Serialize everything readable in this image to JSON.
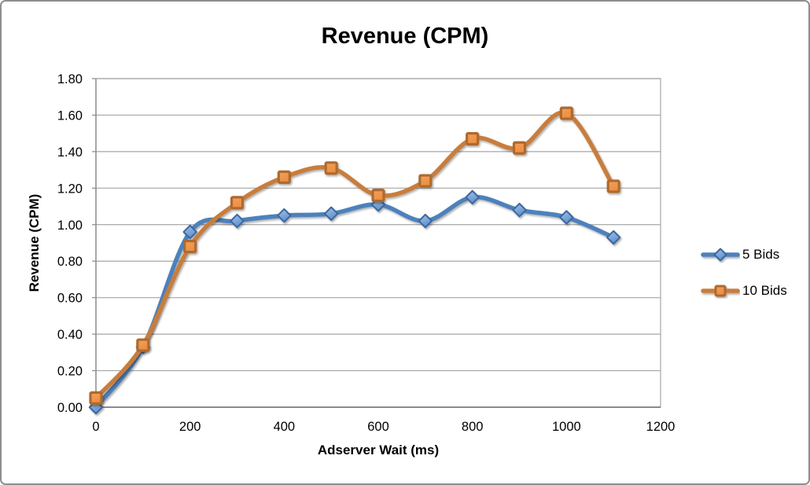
{
  "window": {
    "background": "#ffffff",
    "border_color": "#8e8e8e"
  },
  "chart_data": {
    "type": "line",
    "title": "Revenue (CPM)",
    "xlabel": "Adserver Wait (ms)",
    "ylabel": "Revenue (CPM)",
    "xlim": [
      0,
      1200
    ],
    "ylim": [
      0,
      1.8
    ],
    "grid": true,
    "legend_position": "right",
    "x_ticks": [
      0,
      200,
      400,
      600,
      800,
      1000,
      1200
    ],
    "x_tick_labels": [
      "0",
      "200",
      "400",
      "600",
      "800",
      "1000",
      "1200"
    ],
    "y_ticks": [
      0,
      0.2,
      0.4,
      0.6,
      0.8,
      1.0,
      1.2,
      1.4,
      1.6,
      1.8
    ],
    "y_tick_labels": [
      "0.00",
      "0.20",
      "0.40",
      "0.60",
      "0.80",
      "1.00",
      "1.20",
      "1.40",
      "1.60",
      "1.80"
    ],
    "x": [
      0,
      100,
      200,
      300,
      400,
      500,
      600,
      700,
      800,
      900,
      1000,
      1100
    ],
    "series": [
      {
        "name": "5 Bids",
        "marker": "diamond",
        "line_color": "#4e81bc",
        "marker_fill_light": "#a3c2e8",
        "marker_fill_dark": "#6191ce",
        "marker_border": "#3a679f",
        "values": [
          0.0,
          0.33,
          0.96,
          1.02,
          1.05,
          1.06,
          1.11,
          1.02,
          1.15,
          1.08,
          1.04,
          0.93
        ]
      },
      {
        "name": "10 Bids",
        "marker": "square",
        "line_color": "#c87d3d",
        "marker_fill_light": "#f2a05c",
        "marker_fill_dark": "#ec8f42",
        "marker_border": "#ae6a2e",
        "values": [
          0.05,
          0.34,
          0.88,
          1.12,
          1.26,
          1.31,
          1.16,
          1.24,
          1.47,
          1.42,
          1.61,
          1.21
        ]
      }
    ],
    "colors": {
      "gridline": "#a6a6a6",
      "axis_line": "#8a8a8a",
      "tick_label": "#000000"
    }
  }
}
